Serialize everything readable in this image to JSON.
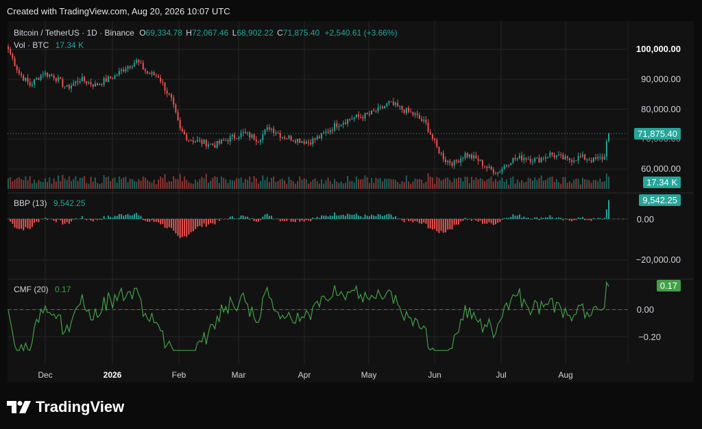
{
  "header": {
    "created": "Created with TradingView.com, Aug 20, 2026 10:07 UTC"
  },
  "legend": {
    "symbol": "Bitcoin / TetherUS · 1D · Binance",
    "o_label": "O",
    "o_value": "69,334.78",
    "h_label": "H",
    "h_value": "72,067.46",
    "l_label": "L",
    "l_value": "68,902.22",
    "c_label": "C",
    "c_value": "71,875.40",
    "change": "+2,540.61 (+3.66%)",
    "vol_label": "Vol · BTC",
    "vol_value": "17.34 K"
  },
  "indicators": {
    "bbp_label": "BBP (13)",
    "bbp_value": "9,542.25",
    "cmf_label": "CMF (20)",
    "cmf_value": "0.17"
  },
  "badges": {
    "price": "71,875.40",
    "volume": "17.34 K",
    "bbp": "9,542.25",
    "cmf": "0.17"
  },
  "price_axis": [
    "100,000.00",
    "90,000.00",
    "80,000.00",
    "70,000.00",
    "60,000.00"
  ],
  "bbp_axis": [
    "0.00",
    "−20,000.00"
  ],
  "cmf_axis": [
    "0.00",
    "−0.20"
  ],
  "months": [
    "Dec",
    "2026",
    "Feb",
    "Mar",
    "Apr",
    "May",
    "Jun",
    "Jul",
    "Aug"
  ],
  "logo_text": "TradingView",
  "colors": {
    "up": "#26a69a",
    "down": "#ef5350",
    "cmf": "#43a047",
    "bg": "#121212"
  },
  "chart_data": {
    "type": "candlestick",
    "symbol": "Bitcoin / TetherUS",
    "interval": "1D",
    "ylim": [
      55000,
      103000
    ],
    "close_anchors": [
      [
        "2025-11-17",
        100000
      ],
      [
        "2025-11-22",
        92000
      ],
      [
        "2025-11-27",
        88000
      ],
      [
        "2025-12-03",
        92000
      ],
      [
        "2025-12-08",
        91000
      ],
      [
        "2025-12-14",
        87000
      ],
      [
        "2025-12-20",
        90000
      ],
      [
        "2025-12-27",
        88000
      ],
      [
        "2026-01-05",
        91000
      ],
      [
        "2026-01-10",
        94000
      ],
      [
        "2026-01-15",
        96000
      ],
      [
        "2026-01-20",
        92000
      ],
      [
        "2026-01-25",
        91000
      ],
      [
        "2026-01-31",
        83000
      ],
      [
        "2026-02-04",
        73000
      ],
      [
        "2026-02-08",
        70000
      ],
      [
        "2026-02-14",
        69000
      ],
      [
        "2026-02-20",
        68000
      ],
      [
        "2026-02-26",
        70000
      ],
      [
        "2026-03-05",
        72000
      ],
      [
        "2026-03-12",
        70000
      ],
      [
        "2026-03-17",
        74000
      ],
      [
        "2026-03-23",
        71000
      ],
      [
        "2026-03-29",
        70000
      ],
      [
        "2026-04-04",
        69000
      ],
      [
        "2026-04-10",
        71000
      ],
      [
        "2026-04-17",
        75000
      ],
      [
        "2026-04-24",
        77000
      ],
      [
        "2026-05-01",
        78000
      ],
      [
        "2026-05-07",
        80000
      ],
      [
        "2026-05-11",
        82000
      ],
      [
        "2026-05-17",
        80000
      ],
      [
        "2026-05-23",
        78000
      ],
      [
        "2026-05-28",
        75000
      ],
      [
        "2026-06-02",
        67000
      ],
      [
        "2026-06-06",
        63000
      ],
      [
        "2026-06-10",
        62000
      ],
      [
        "2026-06-15",
        65000
      ],
      [
        "2026-06-21",
        63000
      ],
      [
        "2026-06-26",
        60000
      ],
      [
        "2026-06-30",
        59000
      ],
      [
        "2026-07-06",
        63000
      ],
      [
        "2026-07-12",
        64000
      ],
      [
        "2026-07-18",
        63000
      ],
      [
        "2026-07-24",
        65000
      ],
      [
        "2026-08-01",
        63000
      ],
      [
        "2026-08-07",
        64000
      ],
      [
        "2026-08-13",
        63000
      ],
      [
        "2026-08-18",
        64000
      ],
      [
        "2026-08-19",
        69334.78
      ],
      [
        "2026-08-20",
        71875.4
      ]
    ],
    "last_candle": {
      "open": 69334.78,
      "high": 72067.46,
      "low": 68902.22,
      "close": 71875.4,
      "change": 2540.61,
      "change_pct": 3.66,
      "volume_k": 17.34
    },
    "bbp": {
      "last": 9542.25,
      "ticks": [
        0,
        -20000
      ]
    },
    "cmf": {
      "period": 20,
      "last": 0.17,
      "ticks": [
        0,
        -0.2
      ]
    }
  }
}
